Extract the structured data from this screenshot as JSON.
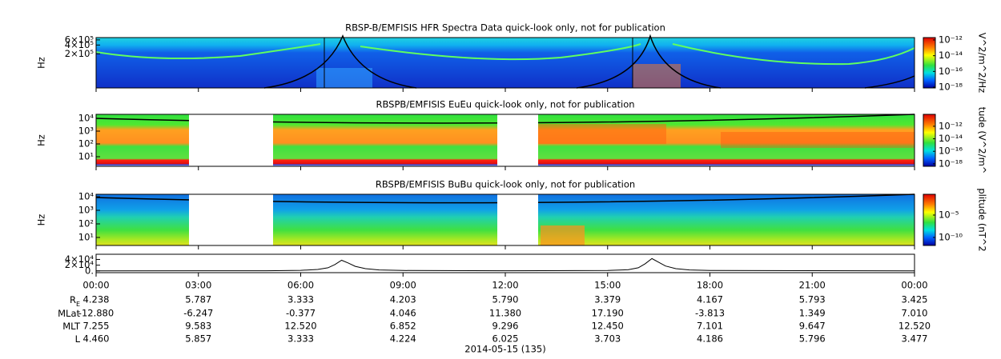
{
  "chart_data": [
    {
      "type": "spectrogram",
      "title": "RBSP-B/EMFISIS  HFR Spectra Data quick-look only, not for publication",
      "ylabel": "Hz",
      "yscale": "log",
      "ylim": [
        13500,
        720000
      ],
      "yticks": [
        {
          "value": 200000,
          "label": "2×10⁵"
        },
        {
          "value": 400000,
          "label": "4×10⁵"
        },
        {
          "value": 600000,
          "label": "6×10⁵"
        }
      ],
      "colorbar": {
        "label": "V^2/m^2/Hz",
        "scale": "log",
        "clim": [
          8e-19,
          2e-12
        ],
        "ticks": [
          {
            "value": 1e-12,
            "label": "10⁻¹²"
          },
          {
            "value": 1e-14,
            "label": "10⁻¹⁴"
          },
          {
            "value": 1e-16,
            "label": "10⁻¹⁶"
          },
          {
            "value": 1e-18,
            "label": "10⁻¹⁸"
          }
        ]
      }
    },
    {
      "type": "spectrogram",
      "title": "RBSPB/EMFISIS  EuEu quick-look only, not for publication",
      "ylabel": "Hz",
      "yscale": "log",
      "ylim": [
        1.78,
        20500
      ],
      "yticks": [
        {
          "value": 10,
          "label": "10¹"
        },
        {
          "value": 100,
          "label": "10²"
        },
        {
          "value": 1000,
          "label": "10³"
        },
        {
          "value": 10000,
          "label": "10⁴"
        }
      ],
      "colorbar": {
        "label": "tude (V^2/m^",
        "scale": "log",
        "clim": [
          4e-19,
          8e-11
        ],
        "ticks": [
          {
            "value": 1e-12,
            "label": "10⁻¹²"
          },
          {
            "value": 1e-14,
            "label": "10⁻¹⁴"
          },
          {
            "value": 1e-16,
            "label": "10⁻¹⁶"
          },
          {
            "value": 1e-18,
            "label": "10⁻¹⁸"
          }
        ]
      }
    },
    {
      "type": "spectrogram",
      "title": "RBSPB/EMFISIS  BuBu quick-look only, not for publication",
      "ylabel": "Hz",
      "yscale": "log",
      "ylim": [
        2.57,
        15100
      ],
      "yticks": [
        {
          "value": 10,
          "label": "10¹"
        },
        {
          "value": 100,
          "label": "10²"
        },
        {
          "value": 1000,
          "label": "10³"
        },
        {
          "value": 10000,
          "label": "10⁴"
        }
      ],
      "colorbar": {
        "label": "plitude (nT^2",
        "scale": "log",
        "clim": [
          1.6e-12,
          0.44
        ],
        "ticks": [
          {
            "value": 1e-05,
            "label": "10⁻⁵"
          },
          {
            "value": 1e-10,
            "label": "10⁻¹⁰"
          }
        ]
      }
    },
    {
      "type": "line",
      "color": "#000000",
      "ylim": [
        -6000,
        58000
      ],
      "yticks": [
        {
          "value": 0,
          "label": "0."
        },
        {
          "value": 20000,
          "label": "2×10⁴"
        },
        {
          "value": 40000,
          "label": "4×10⁴"
        }
      ],
      "xlim": [
        0,
        24
      ],
      "xticks": [
        {
          "value": 0,
          "label": "00:00"
        },
        {
          "value": 3,
          "label": "03:00"
        },
        {
          "value": 6,
          "label": "06:00"
        },
        {
          "value": 9,
          "label": "09:00"
        },
        {
          "value": 12,
          "label": "12:00"
        },
        {
          "value": 15,
          "label": "15:00"
        },
        {
          "value": 18,
          "label": "18:00"
        },
        {
          "value": 21,
          "label": "21:00"
        },
        {
          "value": 24,
          "label": "00:00"
        }
      ],
      "x": [
        0,
        5,
        6,
        6.5,
        6.8,
        7.0,
        7.2,
        7.4,
        7.6,
        7.9,
        8.3,
        9,
        12,
        15,
        15.6,
        15.9,
        16.1,
        16.3,
        16.5,
        16.7,
        17.0,
        17.4,
        18,
        24
      ],
      "values": [
        300,
        800,
        2000,
        5000,
        11000,
        22000,
        37000,
        27000,
        16000,
        8000,
        3500,
        1500,
        800,
        1500,
        4000,
        11000,
        25000,
        43000,
        30000,
        17000,
        8000,
        3500,
        1500,
        400
      ]
    }
  ],
  "ephemeris": {
    "rows": [
      {
        "label": "R",
        "label_sub": "E",
        "values": [
          "4.238",
          "5.787",
          "3.333",
          "4.203",
          "5.790",
          "3.379",
          "4.167",
          "5.793",
          "3.425"
        ]
      },
      {
        "label": "MLat",
        "values": [
          "-12.880",
          "-6.247",
          "-0.377",
          "4.046",
          "11.380",
          "17.190",
          "-3.813",
          "1.349",
          "7.010"
        ]
      },
      {
        "label": "MLT",
        "values": [
          "7.255",
          "9.583",
          "12.520",
          "6.852",
          "9.296",
          "12.450",
          "7.101",
          "9.647",
          "12.520"
        ]
      },
      {
        "label": "L",
        "values": [
          "4.460",
          "5.857",
          "3.333",
          "4.224",
          "6.025",
          "3.703",
          "4.186",
          "5.796",
          "3.477"
        ]
      }
    ],
    "date": "2014-05-15 (135)"
  }
}
